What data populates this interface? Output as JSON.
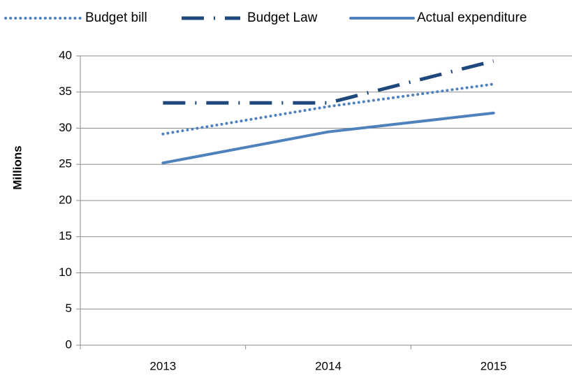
{
  "chart_data": {
    "type": "line",
    "categories": [
      "2013",
      "2014",
      "2015"
    ],
    "series": [
      {
        "name": "Budget bill",
        "values": [
          29.2,
          33.0,
          36.1
        ],
        "color": "#4F81BD",
        "style": "dotted"
      },
      {
        "name": "Budget Law",
        "values": [
          33.5,
          33.5,
          39.3
        ],
        "color": "#1F497D",
        "style": "long-dash-dot"
      },
      {
        "name": "Actual expenditure",
        "values": [
          25.2,
          29.5,
          32.1
        ],
        "color": "#4F81BD",
        "style": "solid"
      }
    ],
    "title": "",
    "xlabel": "",
    "ylabel": "Millions",
    "ylim": [
      0,
      40
    ],
    "yticks": [
      0,
      5,
      10,
      15,
      20,
      25,
      30,
      35,
      40
    ],
    "grid": true,
    "legend_position": "top"
  }
}
